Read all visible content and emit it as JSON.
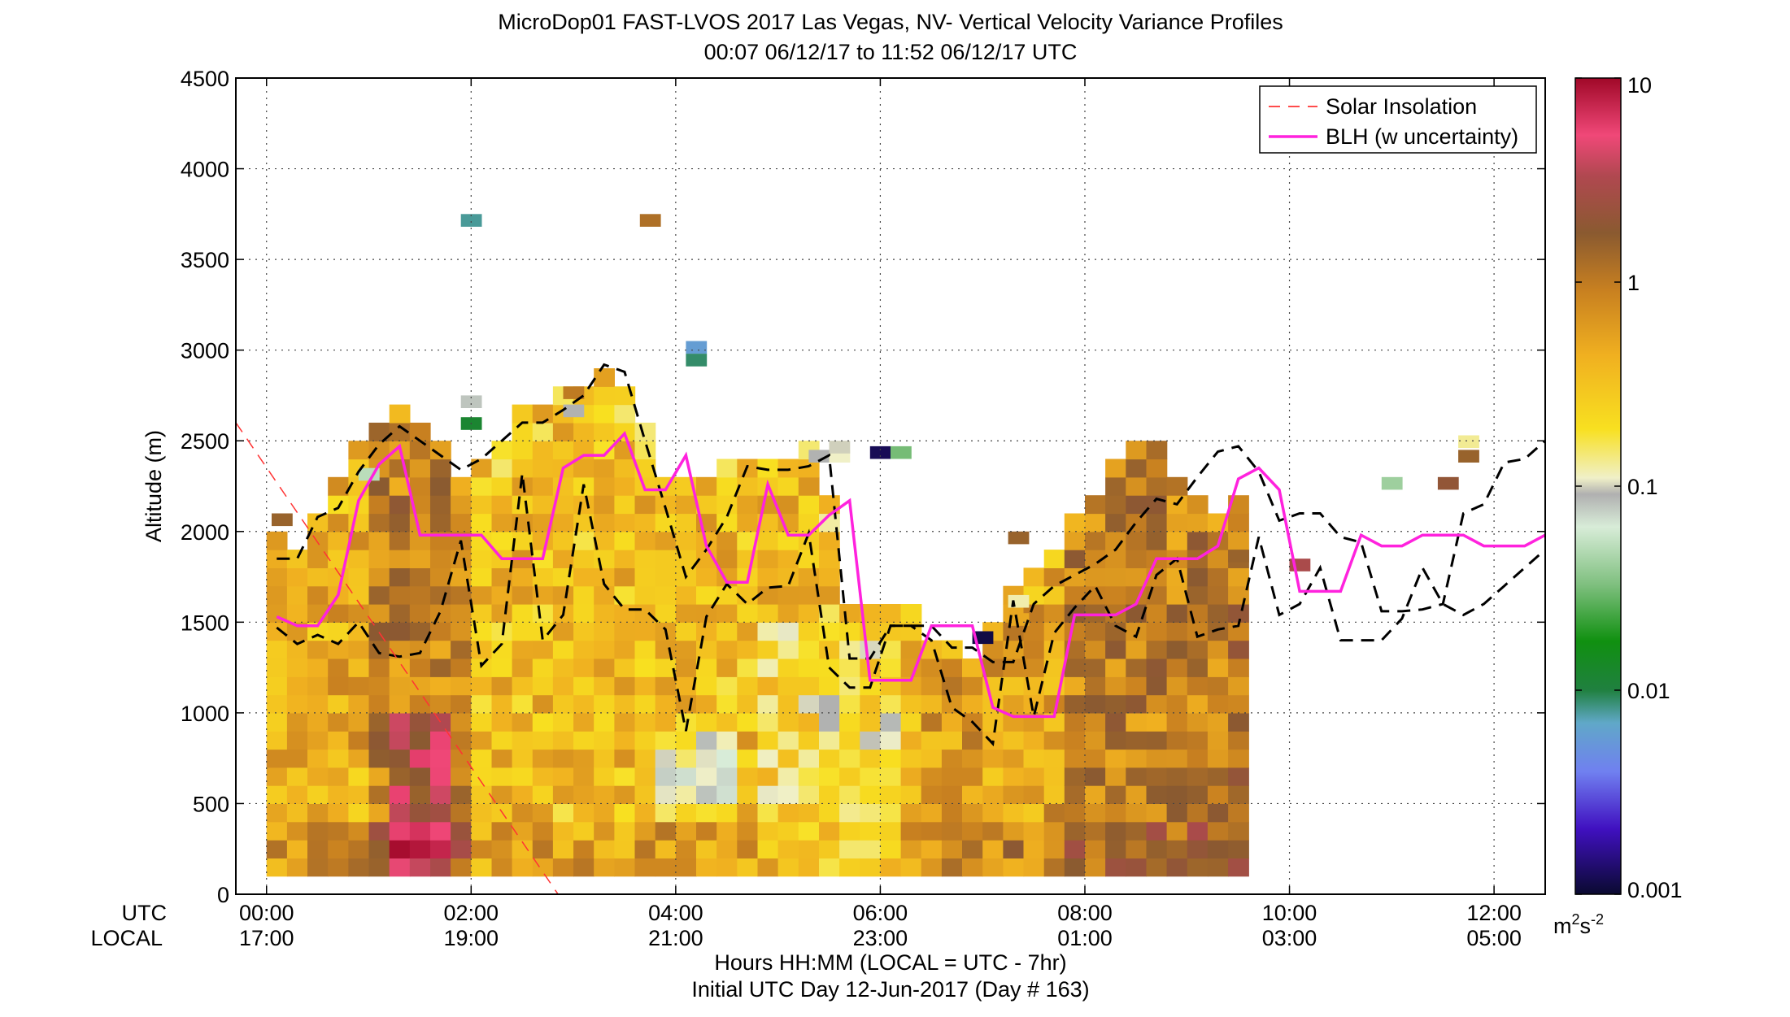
{
  "chart_data": {
    "type": "heatmap",
    "title_line1": "MicroDop01 FAST-LVOS 2017 Las Vegas, NV- Vertical Velocity Variance Profiles",
    "title_line2": "00:07 06/12/17 to 11:52 06/12/17  UTC",
    "ylabel": "Altitude (m)",
    "ylim": [
      0,
      4500
    ],
    "yticks": [
      0,
      500,
      1000,
      1500,
      2000,
      2500,
      3000,
      3500,
      4000,
      4500
    ],
    "xlim_hours": [
      -0.3,
      12.5
    ],
    "xticks": [
      {
        "hour": 0,
        "utc": "00:00",
        "local": "17:00"
      },
      {
        "hour": 2,
        "utc": "02:00",
        "local": "19:00"
      },
      {
        "hour": 4,
        "utc": "04:00",
        "local": "21:00"
      },
      {
        "hour": 6,
        "utc": "06:00",
        "local": "23:00"
      },
      {
        "hour": 8,
        "utc": "08:00",
        "local": "01:00"
      },
      {
        "hour": 10,
        "utc": "10:00",
        "local": "03:00"
      },
      {
        "hour": 12,
        "utc": "12:00",
        "local": "05:00"
      }
    ],
    "row_label_utc": "UTC",
    "row_label_local": "LOCAL",
    "xlabel_line1": "Hours HH:MM  (LOCAL = UTC - 7hr)",
    "xlabel_line2": "Initial UTC Day 12-Jun-2017 (Day # 163)",
    "grid": true,
    "legend_position": "top-right",
    "legend": [
      {
        "label": "Solar Insolation",
        "style": "dashed",
        "color": "#ff3333"
      },
      {
        "label": "BLH (w uncertainty)",
        "style": "solid",
        "color": "#ff22dd"
      }
    ],
    "colorbar": {
      "scale": "log",
      "range": [
        0.001,
        10
      ],
      "ticks": [
        {
          "value": 0.001,
          "label": "0.001"
        },
        {
          "value": 0.01,
          "label": "0.01"
        },
        {
          "value": 0.1,
          "label": "0.1"
        },
        {
          "value": 1,
          "label": "1"
        },
        {
          "value": 10,
          "label": "10"
        }
      ],
      "unit_main": "m",
      "unit_sup1": "2",
      "unit_mid": "s",
      "unit_sup2": "-2"
    },
    "heatmap": {
      "x_start_hours": 0.1,
      "x_step_hours": 0.2,
      "y_start_m": 100,
      "y_step_m": 100,
      "cell_height_m": 100,
      "column_tops_m": [
        1950,
        1900,
        2100,
        2250,
        2500,
        2600,
        2650,
        2600,
        2450,
        2300,
        2400,
        2500,
        2700,
        2700,
        2750,
        2800,
        2900,
        2800,
        2600,
        2250,
        2250,
        2300,
        2350,
        2400,
        2350,
        2350,
        2450,
        2150,
        1550,
        1550,
        1600,
        1550,
        1400,
        1400,
        1300,
        1500,
        1700,
        1750,
        1900,
        2050,
        2200,
        2350,
        2450,
        2450,
        2300,
        2150,
        2050,
        2150
      ],
      "sparse_cells": [
        {
          "hour": 0.15,
          "alt_m": 2050,
          "value": 1.5
        },
        {
          "hour": 7.35,
          "alt_m": 1950,
          "value": 1.5
        },
        {
          "hour": 7.35,
          "alt_m": 1600,
          "value": 0.12
        },
        {
          "hour": 7.35,
          "alt_m": 1500,
          "value": 0.5
        },
        {
          "hour": 11.75,
          "alt_m": 2400,
          "value": 1.5
        },
        {
          "hour": 11.55,
          "alt_m": 2250,
          "value": 2.0
        },
        {
          "hour": 10.1,
          "alt_m": 1800,
          "value": 3.0
        },
        {
          "hour": 9.5,
          "alt_m": 1850,
          "value": 1.5
        }
      ],
      "isolated_cells": [
        {
          "hour": 2.0,
          "alt_m": 3700,
          "value": 0.008
        },
        {
          "hour": 3.75,
          "alt_m": 3700,
          "value": 1.2
        },
        {
          "hour": 4.2,
          "alt_m": 3000,
          "value": 0.006
        },
        {
          "hour": 4.2,
          "alt_m": 2930,
          "value": 0.009
        },
        {
          "hour": 2.0,
          "alt_m": 2580,
          "value": 0.012
        },
        {
          "hour": 2.0,
          "alt_m": 2700,
          "value": 0.08
        },
        {
          "hour": 1.0,
          "alt_m": 2300,
          "value": 0.05
        },
        {
          "hour": 3.0,
          "alt_m": 2750,
          "value": 1.0
        },
        {
          "hour": 3.0,
          "alt_m": 2650,
          "value": 0.09
        },
        {
          "hour": 5.4,
          "alt_m": 2400,
          "value": 0.09
        },
        {
          "hour": 5.6,
          "alt_m": 2400,
          "value": 0.11
        },
        {
          "hour": 5.6,
          "alt_m": 2450,
          "value": 0.1
        },
        {
          "hour": 6.0,
          "alt_m": 2420,
          "value": 0.0012
        },
        {
          "hour": 6.2,
          "alt_m": 2420,
          "value": 0.03
        },
        {
          "hour": 7.0,
          "alt_m": 1400,
          "value": 0.0011
        },
        {
          "hour": 11.75,
          "alt_m": 2480,
          "value": 0.13
        },
        {
          "hour": 11.0,
          "alt_m": 2250,
          "value": 0.04
        }
      ]
    },
    "series": [
      {
        "name": "Solar Insolation",
        "x": [
          -0.3,
          2.85
        ],
        "y": [
          2600,
          0
        ]
      },
      {
        "name": "BLH (w uncertainty)",
        "x": [
          0.1,
          0.3,
          0.5,
          0.7,
          0.9,
          1.1,
          1.3,
          1.5,
          1.7,
          1.9,
          2.1,
          2.3,
          2.5,
          2.7,
          2.9,
          3.1,
          3.3,
          3.5,
          3.7,
          3.9,
          4.1,
          4.3,
          4.5,
          4.7,
          4.9,
          5.1,
          5.3,
          5.5,
          5.7,
          5.9,
          6.1,
          6.3,
          6.5,
          6.7,
          6.9,
          7.1,
          7.3,
          7.5,
          7.7,
          7.9,
          8.1,
          8.3,
          8.5,
          8.7,
          8.9,
          9.1,
          9.3,
          9.5,
          9.7,
          9.9,
          10.1,
          10.3,
          10.5,
          10.7,
          10.9,
          11.1,
          11.3,
          11.5,
          11.7,
          11.9,
          12.1,
          12.3,
          12.5
        ],
        "y": [
          1530,
          1480,
          1480,
          1650,
          2170,
          2370,
          2470,
          1980,
          1980,
          1980,
          1980,
          1850,
          1850,
          1850,
          2350,
          2420,
          2420,
          2540,
          2230,
          2230,
          2420,
          1920,
          1720,
          1720,
          2260,
          1980,
          1980,
          2090,
          2170,
          1180,
          1180,
          1180,
          1480,
          1480,
          1480,
          1030,
          980,
          980,
          980,
          1540,
          1540,
          1540,
          1600,
          1850,
          1850,
          1850,
          1920,
          2290,
          2350,
          2230,
          1670,
          1670,
          1670,
          1980,
          1920,
          1920,
          1980,
          1980,
          1980,
          1920,
          1920,
          1920,
          1980
        ]
      },
      {
        "name": "",
        "style": "dashed-upper",
        "x": [
          0.1,
          0.3,
          0.5,
          0.7,
          0.9,
          1.1,
          1.3,
          1.5,
          1.7,
          1.9,
          2.1,
          2.3,
          2.5,
          2.7,
          2.9,
          3.1,
          3.3,
          3.5,
          3.7,
          3.9,
          4.1,
          4.3,
          4.5,
          4.7,
          4.9,
          5.1,
          5.3,
          5.5,
          5.7,
          5.9,
          6.1,
          6.3,
          6.5,
          6.7,
          6.9,
          7.1,
          7.3,
          7.5,
          7.7,
          7.9,
          8.1,
          8.3,
          8.5,
          8.7,
          8.9,
          9.1,
          9.3,
          9.5,
          9.7,
          9.9,
          10.1,
          10.3,
          10.5,
          10.7,
          10.9,
          11.1,
          11.3,
          11.5,
          11.7,
          11.9,
          12.1,
          12.3,
          12.5
        ],
        "y": [
          1850,
          1850,
          2080,
          2130,
          2330,
          2480,
          2580,
          2500,
          2420,
          2340,
          2400,
          2500,
          2600,
          2600,
          2670,
          2750,
          2920,
          2880,
          2500,
          2130,
          1750,
          1900,
          2080,
          2360,
          2340,
          2340,
          2360,
          2420,
          1300,
          1300,
          1480,
          1480,
          1480,
          1360,
          1360,
          1280,
          1280,
          1600,
          1700,
          1760,
          1820,
          1900,
          2050,
          2180,
          2150,
          2300,
          2440,
          2470,
          2330,
          2060,
          2100,
          2100,
          1970,
          1940,
          1560,
          1560,
          1570,
          1600,
          2100,
          2150,
          2380,
          2400,
          2500
        ]
      },
      {
        "name": "",
        "style": "dashed-lower",
        "x": [
          0.1,
          0.3,
          0.5,
          0.7,
          0.9,
          1.1,
          1.3,
          1.5,
          1.7,
          1.9,
          2.1,
          2.3,
          2.5,
          2.7,
          2.9,
          3.1,
          3.3,
          3.5,
          3.7,
          3.9,
          4.1,
          4.3,
          4.5,
          4.7,
          4.9,
          5.1,
          5.3,
          5.5,
          5.7,
          5.9,
          6.1,
          6.3,
          6.5,
          6.7,
          6.9,
          7.1,
          7.3,
          7.5,
          7.7,
          7.9,
          8.1,
          8.3,
          8.5,
          8.7,
          8.9,
          9.1,
          9.3,
          9.5,
          9.7,
          9.9,
          10.1,
          10.3,
          10.5,
          10.7,
          10.9,
          11.1,
          11.3,
          11.5,
          11.7,
          11.9,
          12.1,
          12.3,
          12.5
        ],
        "y": [
          1470,
          1380,
          1430,
          1380,
          1500,
          1330,
          1310,
          1330,
          1560,
          1950,
          1260,
          1380,
          2320,
          1400,
          1540,
          2260,
          1710,
          1570,
          1570,
          1460,
          900,
          1530,
          1710,
          1600,
          1690,
          1700,
          1990,
          1250,
          1140,
          1140,
          1480,
          1480,
          1400,
          1030,
          950,
          830,
          1620,
          980,
          1440,
          1580,
          1700,
          1480,
          1420,
          1760,
          1850,
          1420,
          1460,
          1480,
          1970,
          1540,
          1600,
          1800,
          1400,
          1400,
          1400,
          1520,
          1800,
          1600,
          1540,
          1600,
          1700,
          1800,
          1900
        ]
      }
    ]
  }
}
